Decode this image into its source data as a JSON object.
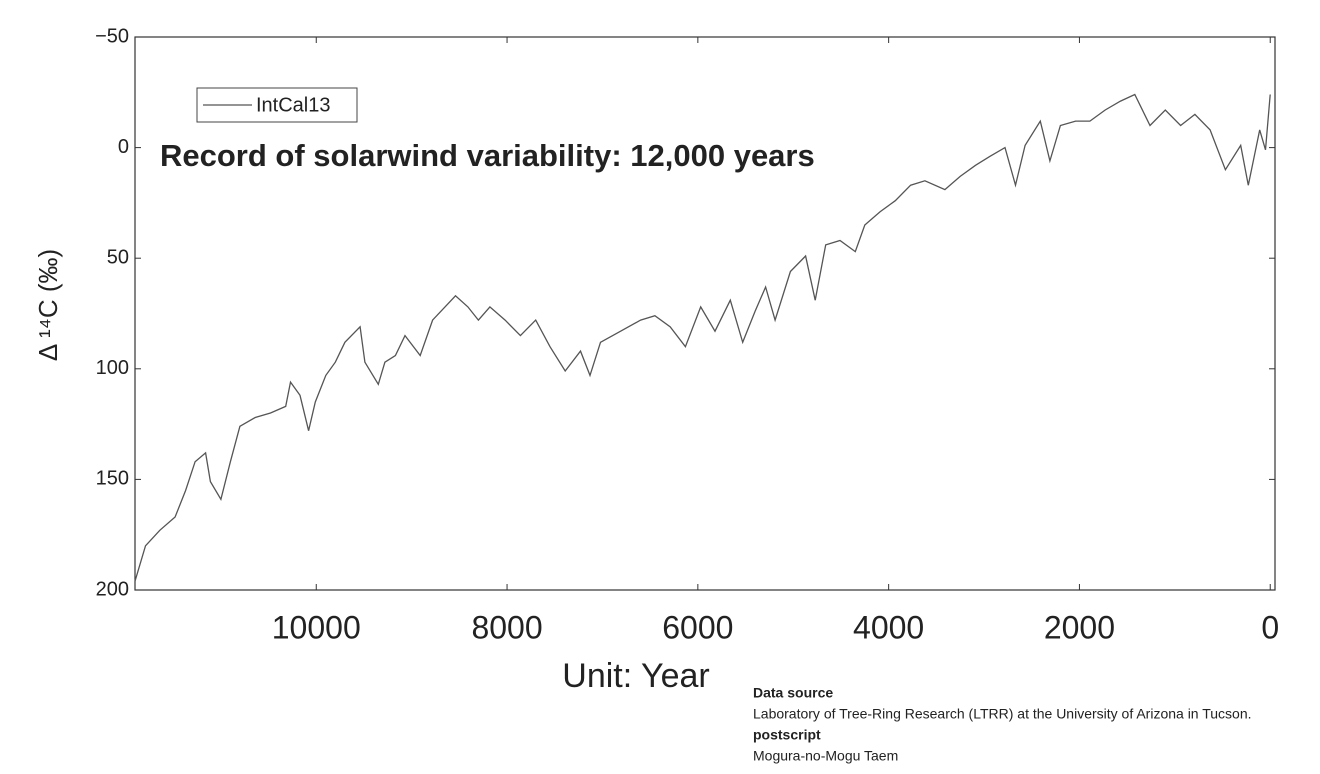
{
  "chart_data": {
    "type": "line",
    "title": "Record of solarwind variability: 12,000 years",
    "x_label": "Unit: Year",
    "y_label": "Δ ¹⁴C (‰)",
    "legend": "upper left",
    "grid": false,
    "xlim": [
      11900,
      -50
    ],
    "ylim": [
      200,
      -50
    ],
    "xticks": [
      10000,
      8000,
      6000,
      4000,
      2000,
      0
    ],
    "yticks": [
      {
        "value": -50,
        "label": "−50"
      },
      0,
      50,
      100,
      150,
      200
    ],
    "x": [
      11900,
      11790,
      11640,
      11480,
      11370,
      11270,
      11160,
      11110,
      11000,
      10900,
      10800,
      10640,
      10480,
      10320,
      10270,
      10170,
      10080,
      10010,
      9900,
      9800,
      9700,
      9540,
      9490,
      9350,
      9280,
      9170,
      9070,
      8910,
      8780,
      8650,
      8540,
      8410,
      8300,
      8180,
      8020,
      7860,
      7700,
      7550,
      7390,
      7230,
      7130,
      7020,
      6810,
      6600,
      6450,
      6290,
      6130,
      5970,
      5820,
      5660,
      5530,
      5400,
      5290,
      5190,
      5030,
      4870,
      4770,
      4660,
      4510,
      4350,
      4250,
      4090,
      3930,
      3770,
      3620,
      3410,
      3250,
      3090,
      2940,
      2780,
      2670,
      2570,
      2410,
      2310,
      2200,
      2040,
      1890,
      1730,
      1570,
      1420,
      1260,
      1100,
      940,
      790,
      630,
      470,
      310,
      230,
      110,
      50,
      0
    ],
    "series": [
      {
        "name": "IntCal13",
        "color": "#555555",
        "values": [
          196,
          180,
          173,
          167,
          155,
          142,
          138,
          151,
          159,
          142,
          126,
          122,
          120,
          117,
          106,
          112,
          128,
          115,
          103,
          97,
          88,
          81,
          97,
          107,
          97,
          94,
          85,
          94,
          78,
          72,
          67,
          72,
          78,
          72,
          78,
          85,
          78,
          90,
          101,
          92,
          103,
          88,
          83,
          78,
          76,
          81,
          90,
          72,
          83,
          69,
          88,
          74,
          63,
          78,
          56,
          49,
          69,
          44,
          42,
          47,
          35,
          29,
          24,
          17,
          15,
          19,
          13,
          8,
          4,
          0,
          17,
          -1,
          -12,
          6,
          -10,
          -12,
          -12,
          -17,
          -21,
          -24,
          -10,
          -17,
          -10,
          -15,
          -8,
          10,
          -1,
          17,
          -8,
          1,
          -24
        ]
      }
    ],
    "notes": {
      "source_heading": "Data source",
      "source": "Laboratory of Tree-Ring Research (LTRR) at the University of Arizona in Tucson.",
      "postscript_heading": "postscript",
      "postscript": "Mogura-no-Mogu Taem"
    }
  }
}
